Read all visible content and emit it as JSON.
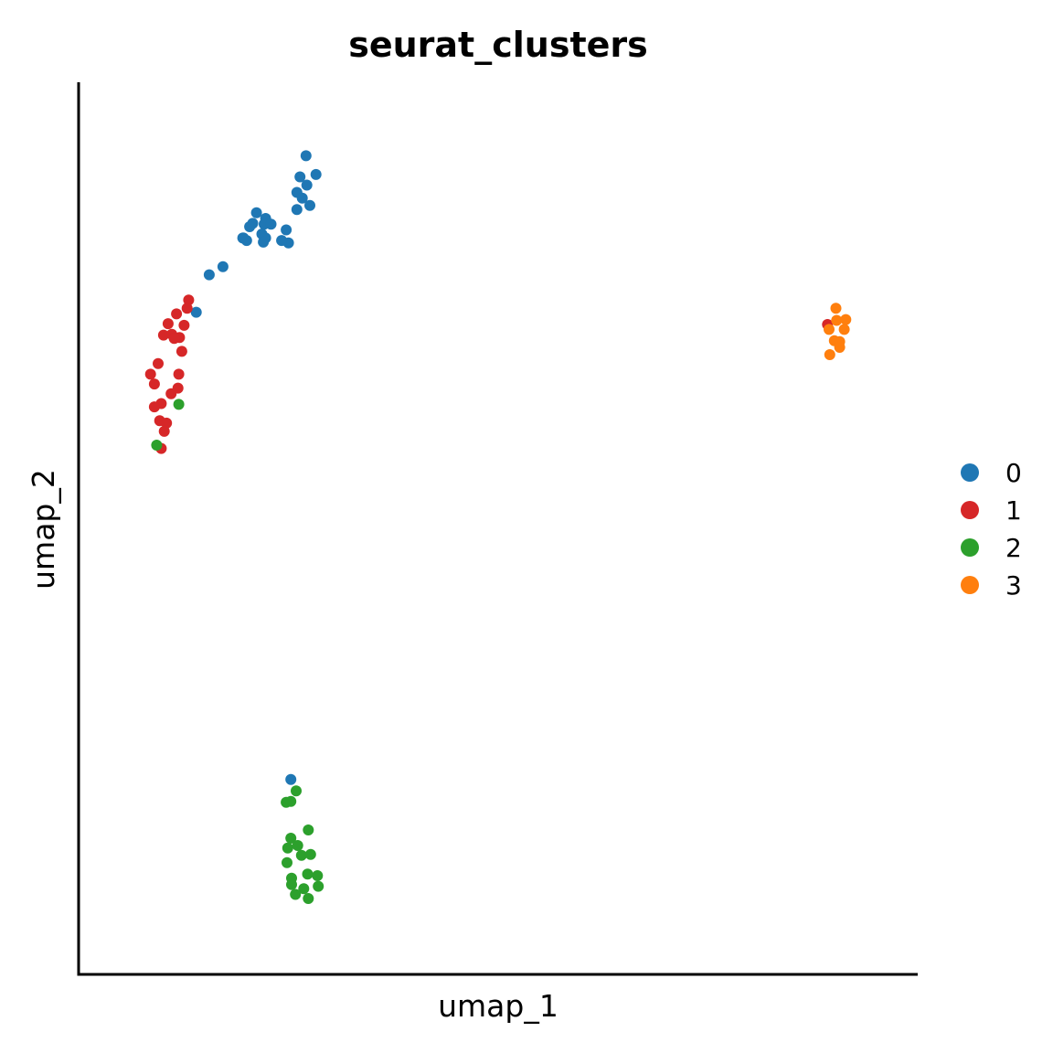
{
  "chart_data": {
    "type": "scatter",
    "title": "seurat_clusters",
    "xlabel": "umap_1",
    "ylabel": "umap_2",
    "xlim": [
      0,
      100
    ],
    "ylim": [
      0,
      100
    ],
    "grid": false,
    "ticks_shown": false,
    "legend_position": "right",
    "series": [
      {
        "name": "0",
        "color": "#1f77b4",
        "points": [
          [
            24.8,
            95.7
          ],
          [
            26.1,
            93.4
          ],
          [
            24.0,
            93.1
          ],
          [
            24.9,
            92.1
          ],
          [
            23.6,
            91.2
          ],
          [
            24.3,
            90.5
          ],
          [
            25.3,
            89.6
          ],
          [
            23.6,
            89.1
          ],
          [
            18.3,
            88.7
          ],
          [
            19.5,
            88.0
          ],
          [
            17.8,
            87.4
          ],
          [
            19.3,
            87.3
          ],
          [
            20.2,
            87.3
          ],
          [
            17.4,
            87.0
          ],
          [
            22.2,
            86.6
          ],
          [
            19.0,
            86.1
          ],
          [
            16.5,
            85.6
          ],
          [
            19.5,
            85.6
          ],
          [
            17.0,
            85.3
          ],
          [
            22.5,
            85.0
          ],
          [
            19.2,
            85.1
          ],
          [
            16.6,
            85.6
          ],
          [
            21.6,
            85.3
          ],
          [
            12.1,
            81.1
          ],
          [
            13.9,
            82.1
          ],
          [
            10.4,
            76.5
          ],
          [
            22.8,
            19.2
          ]
        ]
      },
      {
        "name": "1",
        "color": "#d62728",
        "points": [
          [
            9.4,
            78.0
          ],
          [
            9.2,
            77.0
          ],
          [
            7.8,
            76.3
          ],
          [
            6.7,
            75.1
          ],
          [
            8.8,
            74.9
          ],
          [
            6.1,
            73.7
          ],
          [
            7.2,
            73.8
          ],
          [
            8.2,
            73.4
          ],
          [
            7.5,
            73.3
          ],
          [
            8.5,
            71.7
          ],
          [
            5.4,
            70.2
          ],
          [
            4.4,
            68.9
          ],
          [
            8.1,
            68.9
          ],
          [
            4.9,
            67.7
          ],
          [
            8.0,
            67.2
          ],
          [
            7.1,
            66.5
          ],
          [
            5.8,
            65.3
          ],
          [
            4.9,
            64.9
          ],
          [
            5.6,
            63.2
          ],
          [
            6.5,
            62.9
          ],
          [
            6.2,
            61.9
          ],
          [
            5.8,
            59.8
          ],
          [
            93.2,
            75.0
          ]
        ]
      },
      {
        "name": "2",
        "color": "#2ca02c",
        "points": [
          [
            8.1,
            65.2
          ],
          [
            5.2,
            60.2
          ],
          [
            23.5,
            17.8
          ],
          [
            22.2,
            16.4
          ],
          [
            22.8,
            16.5
          ],
          [
            25.1,
            13.0
          ],
          [
            22.8,
            12.0
          ],
          [
            23.7,
            11.1
          ],
          [
            22.4,
            10.8
          ],
          [
            24.2,
            9.9
          ],
          [
            25.4,
            10.0
          ],
          [
            22.3,
            9.0
          ],
          [
            25.0,
            7.6
          ],
          [
            26.3,
            7.4
          ],
          [
            22.9,
            7.1
          ],
          [
            22.9,
            6.3
          ],
          [
            26.4,
            6.1
          ],
          [
            24.5,
            5.8
          ],
          [
            23.4,
            5.1
          ],
          [
            25.1,
            4.6
          ]
        ]
      },
      {
        "name": "3",
        "color": "#ff7f0e",
        "points": [
          [
            94.3,
            77.0
          ],
          [
            94.4,
            75.5
          ],
          [
            95.6,
            75.6
          ],
          [
            93.4,
            74.4
          ],
          [
            95.4,
            74.4
          ],
          [
            94.1,
            73.0
          ],
          [
            94.8,
            72.9
          ],
          [
            94.8,
            72.2
          ],
          [
            93.5,
            71.3
          ]
        ]
      }
    ]
  }
}
